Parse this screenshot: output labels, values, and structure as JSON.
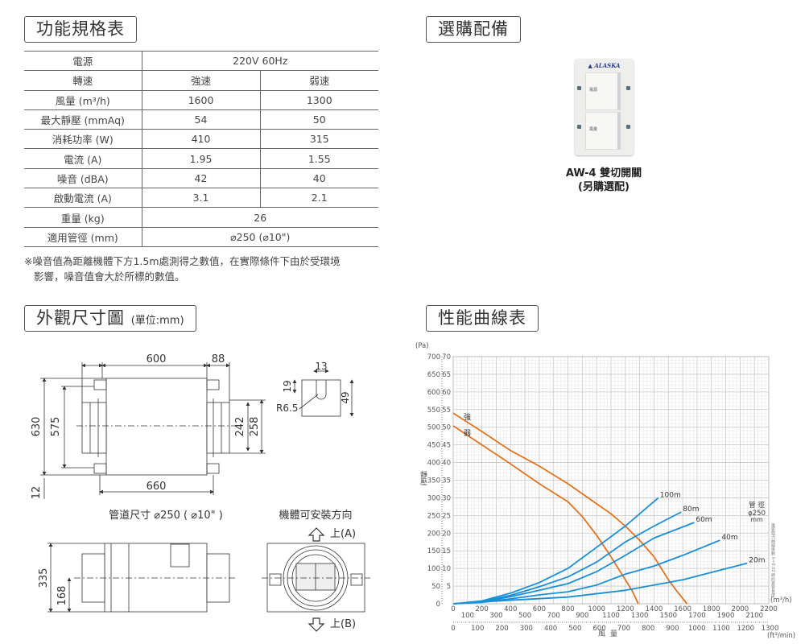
{
  "spec": {
    "title": "功能規格表",
    "rows": [
      {
        "label": "電源",
        "span": "220V  60Hz"
      },
      {
        "label": "轉速",
        "strong": "強速",
        "weak": "弱速"
      },
      {
        "label": "風量 (m³/h)",
        "strong": "1600",
        "weak": "1300"
      },
      {
        "label": "最大靜壓 (mmAq)",
        "strong": "54",
        "weak": "50"
      },
      {
        "label": "消耗功率 (W)",
        "strong": "410",
        "weak": "315"
      },
      {
        "label": "電流 (A)",
        "strong": "1.95",
        "weak": "1.55"
      },
      {
        "label": "噪音 (dBA)",
        "strong": "42",
        "weak": "40"
      },
      {
        "label": "啟動電流 (A)",
        "strong": "3.1",
        "weak": "2.1"
      },
      {
        "label": "重量 (kg)",
        "span": "26"
      },
      {
        "label": "適用管徑 (mm)",
        "span": "⌀250 (⌀10\")"
      }
    ],
    "note_line1": "※噪音值為距離機體下方1.5m處測得之數值，在實際條件下由於受環境",
    "note_line2": "影響，噪音值會大於所標的數值。"
  },
  "accessory": {
    "title": "選購配備",
    "switch_brand": "ALASKA",
    "key1": "電源",
    "key2": "風量",
    "caption1": "AW-4 雙切開關",
    "caption2": "(另購選配)"
  },
  "dimensions": {
    "title": "外觀尺寸圖",
    "unit": "(單位:mm)",
    "d600": "600",
    "d88": "88",
    "d630": "630",
    "d575": "575",
    "d12": "12",
    "d660": "660",
    "d242": "242",
    "d258": "258",
    "d13": "13",
    "d19": "19",
    "d49": "49",
    "r65": "R6.5",
    "d335": "335",
    "d168": "168",
    "duct_size": "管道尺寸  ⌀250 ( ⌀10\" )",
    "mount_title": "機體可安裝方向",
    "up_a": "上(A)",
    "up_b": "上(B)"
  },
  "chart_data": {
    "type": "line",
    "title": "性能曲線表",
    "y_unit_pa": "(Pa)",
    "y_unit_mmaq": "(mmAq)",
    "ylabel": "靜壓",
    "xlabel": "風量",
    "x_unit": "(m³/h)",
    "x2_unit": "(ft³/min)",
    "xlim": [
      0,
      2200
    ],
    "ylim": [
      0,
      70
    ],
    "y_pa_ticks": [
      0,
      50,
      100,
      150,
      200,
      250,
      300,
      350,
      400,
      450,
      500,
      550,
      600,
      650,
      700
    ],
    "y_mmaq_ticks": [
      5,
      10,
      15,
      20,
      25,
      30,
      35,
      40,
      45,
      50,
      55,
      60,
      65,
      70
    ],
    "x_ticks": [
      0,
      100,
      200,
      300,
      400,
      500,
      600,
      700,
      800,
      900,
      1000,
      1100,
      1200,
      1300,
      1400,
      1500,
      1600,
      1700,
      1800,
      1900,
      2000,
      2100,
      2200
    ],
    "x2_ticks": [
      0,
      100,
      200,
      300,
      400,
      500,
      600,
      700,
      800,
      900,
      1000,
      1100,
      1200,
      1300
    ],
    "grid": true,
    "colors": {
      "fan": "#e0731f",
      "duct": "#1a8fd6"
    },
    "fan_series": [
      {
        "name": "強",
        "x": [
          0,
          200,
          400,
          600,
          800,
          1000,
          1100,
          1200,
          1300,
          1400,
          1500,
          1560,
          1630
        ],
        "y": [
          54,
          48.8,
          43.4,
          39,
          34,
          28.3,
          25.5,
          22,
          18,
          13.3,
          6.8,
          3.5,
          0
        ]
      },
      {
        "name": "弱",
        "x": [
          0,
          200,
          400,
          600,
          800,
          900,
          1000,
          1100,
          1200,
          1250,
          1290
        ],
        "y": [
          50.4,
          45,
          39.6,
          34,
          28.9,
          24.7,
          19.4,
          13.3,
          6.8,
          3.5,
          0
        ]
      }
    ],
    "duct_series": [
      {
        "name": "100m",
        "x": [
          0,
          200,
          400,
          600,
          800,
          1000,
          1200,
          1430
        ],
        "y": [
          0,
          0.8,
          3,
          6,
          10,
          16,
          22,
          30
        ]
      },
      {
        "name": "80m",
        "x": [
          0,
          200,
          400,
          600,
          800,
          1000,
          1200,
          1400,
          1590
        ],
        "y": [
          0,
          0.6,
          2.4,
          4.8,
          7.6,
          11.8,
          17.5,
          22,
          26
        ]
      },
      {
        "name": "60m",
        "x": [
          0,
          200,
          400,
          600,
          800,
          1000,
          1200,
          1400,
          1680
        ],
        "y": [
          0,
          0.5,
          2,
          3.8,
          5.7,
          9.1,
          13.7,
          18.6,
          23
        ]
      },
      {
        "name": "40m",
        "x": [
          0,
          200,
          400,
          600,
          800,
          1000,
          1200,
          1400,
          1600,
          1860
        ],
        "y": [
          0,
          0.4,
          1.4,
          2.5,
          3.4,
          5.3,
          8.4,
          10.7,
          13.7,
          18
        ]
      },
      {
        "name": "20m",
        "x": [
          0,
          400,
          800,
          1200,
          1400,
          1600,
          2050
        ],
        "y": [
          0,
          1,
          1.9,
          3.8,
          5.3,
          6.8,
          11.5
        ]
      }
    ],
    "duct_label": "管 徑",
    "duct_dia": "φ250",
    "duct_mm": "mm",
    "side_note": "風管阻力曲線係數 λ＝0.02 時的直管長度"
  }
}
